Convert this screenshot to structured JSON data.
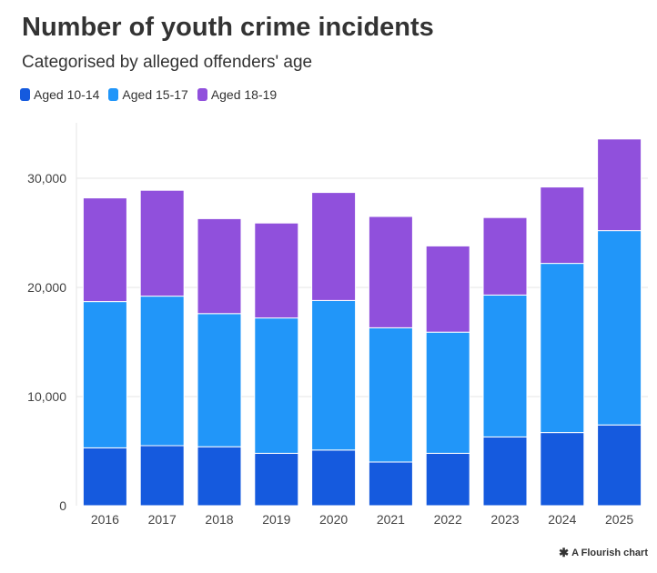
{
  "chart_data": {
    "type": "bar",
    "stacked": true,
    "title": "Number of youth crime incidents",
    "subtitle": "Categorised by alleged offenders' age",
    "categories": [
      "2016",
      "2017",
      "2018",
      "2019",
      "2020",
      "2021",
      "2022",
      "2023",
      "2024",
      "2025"
    ],
    "series": [
      {
        "name": "Aged 10-14",
        "color": "#155ade",
        "values": [
          5300,
          5500,
          5400,
          4800,
          5100,
          4000,
          4800,
          6300,
          6700,
          7400
        ]
      },
      {
        "name": "Aged 15-17",
        "color": "#2196f9",
        "values": [
          13400,
          13700,
          12200,
          12400,
          13700,
          12300,
          11100,
          13000,
          15500,
          17800
        ]
      },
      {
        "name": "Aged 18-19",
        "color": "#9050dc",
        "values": [
          9500,
          9700,
          8700,
          8700,
          9900,
          10200,
          7900,
          7100,
          7000,
          8400
        ]
      }
    ],
    "yticks": [
      0,
      10000,
      20000,
      30000
    ],
    "ytick_labels": [
      "0",
      "10,000",
      "20,000",
      "30,000"
    ],
    "ylim": [
      0,
      35000
    ],
    "grid": true,
    "legend_position": "top-left"
  },
  "footer": {
    "icon": "flourish-asterisk-icon",
    "text": "A Flourish chart"
  }
}
